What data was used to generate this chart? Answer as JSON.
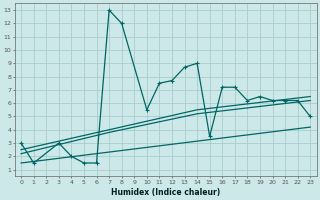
{
  "bg_color": "#cce8e8",
  "grid_color": "#aacccc",
  "line_color": "#006666",
  "xlabel": "Humidex (Indice chaleur)",
  "xlim": [
    -0.5,
    23.5
  ],
  "ylim": [
    0.5,
    13.5
  ],
  "xticks": [
    0,
    1,
    2,
    3,
    4,
    5,
    6,
    7,
    8,
    9,
    10,
    11,
    12,
    13,
    14,
    15,
    16,
    17,
    18,
    19,
    20,
    21,
    22,
    23
  ],
  "yticks": [
    1,
    2,
    3,
    4,
    5,
    6,
    7,
    8,
    9,
    10,
    11,
    12,
    13
  ],
  "line1_x": [
    0,
    1,
    3,
    4,
    5,
    6,
    7,
    8,
    10,
    11,
    12,
    13,
    14,
    15,
    16,
    17,
    18,
    19,
    20,
    21,
    22,
    23
  ],
  "line1_y": [
    3.0,
    1.5,
    3.0,
    2.0,
    1.5,
    1.5,
    13.0,
    12.0,
    5.5,
    7.5,
    7.7,
    8.7,
    9.0,
    3.5,
    7.2,
    7.2,
    6.2,
    6.5,
    6.2,
    6.2,
    6.2,
    5.0
  ],
  "line2_x": [
    0,
    7,
    14,
    23
  ],
  "line2_y": [
    2.5,
    4.0,
    5.5,
    6.5
  ],
  "line3_x": [
    0,
    7,
    14,
    23
  ],
  "line3_y": [
    2.2,
    3.8,
    5.2,
    6.2
  ],
  "line4_x": [
    0,
    23
  ],
  "line4_y": [
    1.5,
    4.2
  ]
}
